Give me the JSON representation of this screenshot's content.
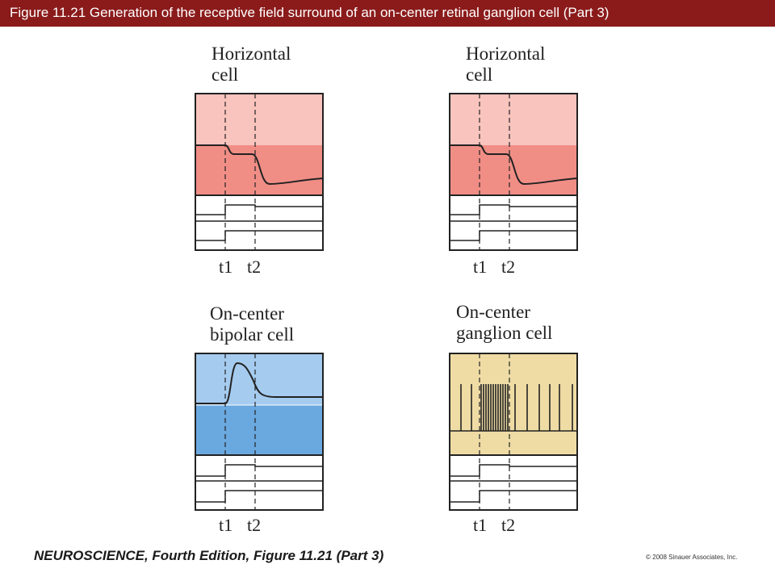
{
  "header": {
    "title": "Figure 11.21  Generation of the receptive field surround of an on-center retinal ganglion cell (Part 3)"
  },
  "panels": {
    "horizontal_left": {
      "label_line1": "Horizontal",
      "label_line2": "cell",
      "t1": "t1",
      "t2": "t2"
    },
    "horizontal_right": {
      "label_line1": "Horizontal",
      "label_line2": "cell",
      "t1": "t1",
      "t2": "t2"
    },
    "bipolar": {
      "label_line1": "On-center",
      "label_line2": "bipolar cell",
      "t1": "t1",
      "t2": "t2"
    },
    "ganglion": {
      "label_line1": "On-center",
      "label_line2": "ganglion cell",
      "t1": "t1",
      "t2": "t2"
    }
  },
  "colors": {
    "header_bg": "#8b1b1b",
    "horizontal_light": "#f9c4bd",
    "horizontal_dark": "#f08e86",
    "bipolar_light": "#a5cbef",
    "bipolar_dark": "#6aa8e0",
    "ganglion": "#efdca5"
  },
  "footer": {
    "citation": "NEUROSCIENCE, Fourth Edition, Figure 11.21 (Part 3)",
    "copyright": "© 2008 Sinauer Associates, Inc."
  }
}
